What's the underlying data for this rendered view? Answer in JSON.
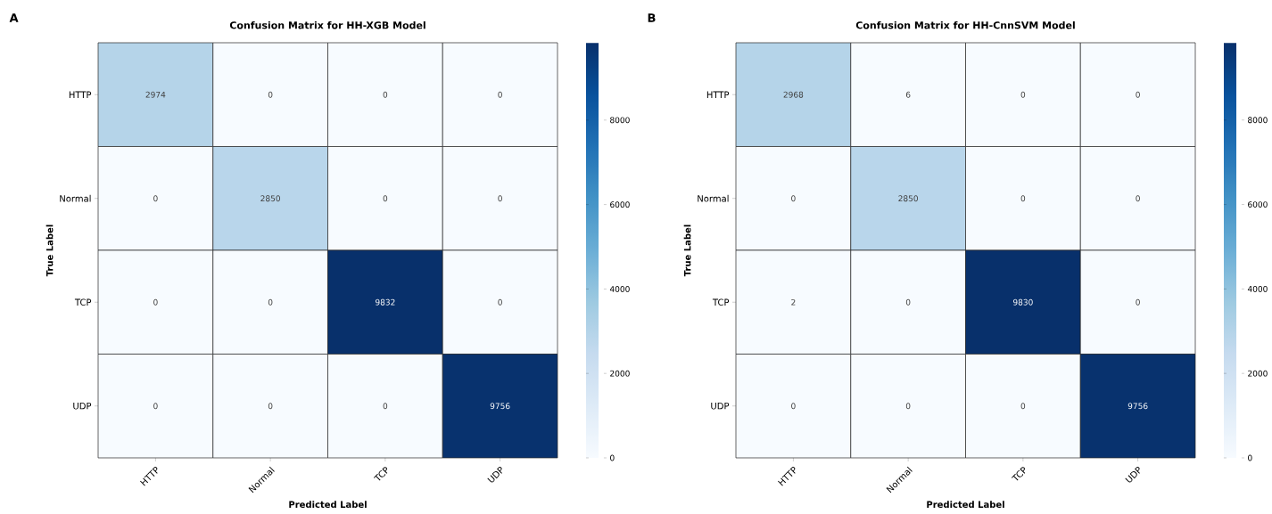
{
  "chart_data": [
    {
      "type": "heatmap",
      "title": "Confusion Matrix for HH-XGB Model",
      "xlabel": "Predicted Label",
      "ylabel": "True Label",
      "annotations": [
        "A"
      ],
      "categories": [
        "HTTP",
        "Normal",
        "TCP",
        "UDP"
      ],
      "y_categories": [
        "HTTP",
        "Normal",
        "TCP",
        "UDP"
      ],
      "cells": [
        [
          2974,
          0,
          0,
          0
        ],
        [
          0,
          2850,
          0,
          0
        ],
        [
          0,
          0,
          9832,
          0
        ],
        [
          0,
          0,
          0,
          9756
        ]
      ],
      "clim": [
        0,
        9832
      ],
      "cticks": [
        0,
        2000,
        4000,
        6000,
        8000
      ],
      "data_labels": true
    },
    {
      "type": "heatmap",
      "title": "Confusion Matrix for HH-CnnSVM Model",
      "xlabel": "Predicted Label",
      "ylabel": "True Label",
      "annotations": [
        "B"
      ],
      "categories": [
        "HTTP",
        "Normal",
        "TCP",
        "UDP"
      ],
      "y_categories": [
        "HTTP",
        "Normal",
        "TCP",
        "UDP"
      ],
      "cells": [
        [
          2968,
          6,
          0,
          0
        ],
        [
          0,
          2850,
          0,
          0
        ],
        [
          2,
          0,
          9830,
          0
        ],
        [
          0,
          0,
          0,
          9756
        ]
      ],
      "clim": [
        0,
        9830
      ],
      "cticks": [
        0,
        2000,
        4000,
        6000,
        8000
      ],
      "data_labels": true
    }
  ]
}
